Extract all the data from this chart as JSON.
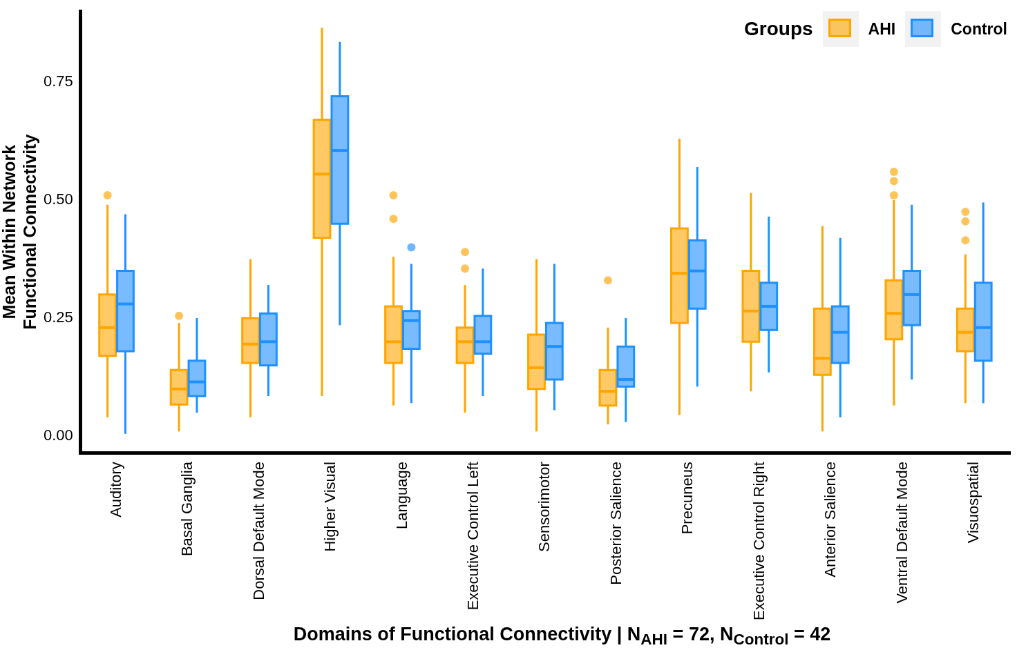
{
  "chart_data": {
    "type": "box",
    "xlabel": "Domains of Functional Connectivity | N$_{AHI}$ = 72, N$_{Control}$ = 42",
    "ylabel": "Mean Within Network\nFunctional Connectivity",
    "legend_title": "Groups",
    "legend": "top right",
    "categories": [
      "Auditory",
      "Basal Ganglia",
      "Dorsal Default Mode",
      "Higher Visual",
      "Language",
      "Executive Control Left",
      "Sensorimotor",
      "Posterior Salience",
      "Precuneus",
      "Executive Control Right",
      "Anterior Salience",
      "Ventral Default Mode",
      "Visuospatial"
    ],
    "ylim": [
      -0.035,
      0.9
    ],
    "yticks": [
      {
        "value": 0,
        "label": "0.00"
      },
      {
        "value": 0.25,
        "label": "0.25"
      },
      {
        "value": 0.5,
        "label": "0.50"
      },
      {
        "value": 0.75,
        "label": "0.75"
      }
    ],
    "series": [
      {
        "name": "AHI",
        "color": "#ffa500",
        "boxes": [
          {
            "low": 0.04,
            "q1": 0.17,
            "median": 0.23,
            "q3": 0.3,
            "high": 0.49,
            "outliers": [
              0.51
            ]
          },
          {
            "low": 0.01,
            "q1": 0.067,
            "median": 0.1,
            "q3": 0.14,
            "high": 0.24,
            "outliers": [
              0.255
            ]
          },
          {
            "low": 0.04,
            "q1": 0.155,
            "median": 0.195,
            "q3": 0.25,
            "high": 0.375
          },
          {
            "low": 0.085,
            "q1": 0.42,
            "median": 0.555,
            "q3": 0.67,
            "high": 0.865
          },
          {
            "low": 0.065,
            "q1": 0.155,
            "median": 0.2,
            "q3": 0.275,
            "high": 0.38,
            "outliers": [
              0.46,
              0.51
            ]
          },
          {
            "low": 0.05,
            "q1": 0.155,
            "median": 0.2,
            "q3": 0.23,
            "high": 0.32,
            "outliers": [
              0.355,
              0.39
            ]
          },
          {
            "low": 0.01,
            "q1": 0.1,
            "median": 0.145,
            "q3": 0.215,
            "high": 0.375
          },
          {
            "low": 0.025,
            "q1": 0.065,
            "median": 0.095,
            "q3": 0.14,
            "high": 0.23,
            "outliers": [
              0.33
            ]
          },
          {
            "low": 0.045,
            "q1": 0.24,
            "median": 0.345,
            "q3": 0.44,
            "high": 0.63
          },
          {
            "low": 0.095,
            "q1": 0.2,
            "median": 0.265,
            "q3": 0.35,
            "high": 0.515
          },
          {
            "low": 0.01,
            "q1": 0.13,
            "median": 0.165,
            "q3": 0.27,
            "high": 0.445
          },
          {
            "low": 0.065,
            "q1": 0.205,
            "median": 0.26,
            "q3": 0.33,
            "high": 0.5,
            "outliers": [
              0.51,
              0.54,
              0.56
            ]
          },
          {
            "low": 0.07,
            "q1": 0.18,
            "median": 0.22,
            "q3": 0.27,
            "high": 0.385,
            "outliers": [
              0.415,
              0.455,
              0.475
            ]
          }
        ]
      },
      {
        "name": "Control",
        "color": "#1e90ff",
        "boxes": [
          {
            "low": 0.005,
            "q1": 0.18,
            "median": 0.28,
            "q3": 0.35,
            "high": 0.47
          },
          {
            "low": 0.05,
            "q1": 0.085,
            "median": 0.115,
            "q3": 0.16,
            "high": 0.25
          },
          {
            "low": 0.085,
            "q1": 0.15,
            "median": 0.2,
            "q3": 0.26,
            "high": 0.32
          },
          {
            "low": 0.235,
            "q1": 0.45,
            "median": 0.605,
            "q3": 0.72,
            "high": 0.835
          },
          {
            "low": 0.07,
            "q1": 0.185,
            "median": 0.245,
            "q3": 0.265,
            "high": 0.365,
            "outliers": [
              0.4
            ]
          },
          {
            "low": 0.085,
            "q1": 0.175,
            "median": 0.2,
            "q3": 0.255,
            "high": 0.355
          },
          {
            "low": 0.055,
            "q1": 0.12,
            "median": 0.19,
            "q3": 0.24,
            "high": 0.365
          },
          {
            "low": 0.03,
            "q1": 0.105,
            "median": 0.12,
            "q3": 0.19,
            "high": 0.25
          },
          {
            "low": 0.105,
            "q1": 0.27,
            "median": 0.35,
            "q3": 0.415,
            "high": 0.57
          },
          {
            "low": 0.135,
            "q1": 0.225,
            "median": 0.275,
            "q3": 0.325,
            "high": 0.465
          },
          {
            "low": 0.04,
            "q1": 0.155,
            "median": 0.22,
            "q3": 0.275,
            "high": 0.42
          },
          {
            "low": 0.12,
            "q1": 0.235,
            "median": 0.3,
            "q3": 0.35,
            "high": 0.49
          },
          {
            "low": 0.07,
            "q1": 0.16,
            "median": 0.23,
            "q3": 0.325,
            "high": 0.495
          }
        ]
      }
    ]
  }
}
